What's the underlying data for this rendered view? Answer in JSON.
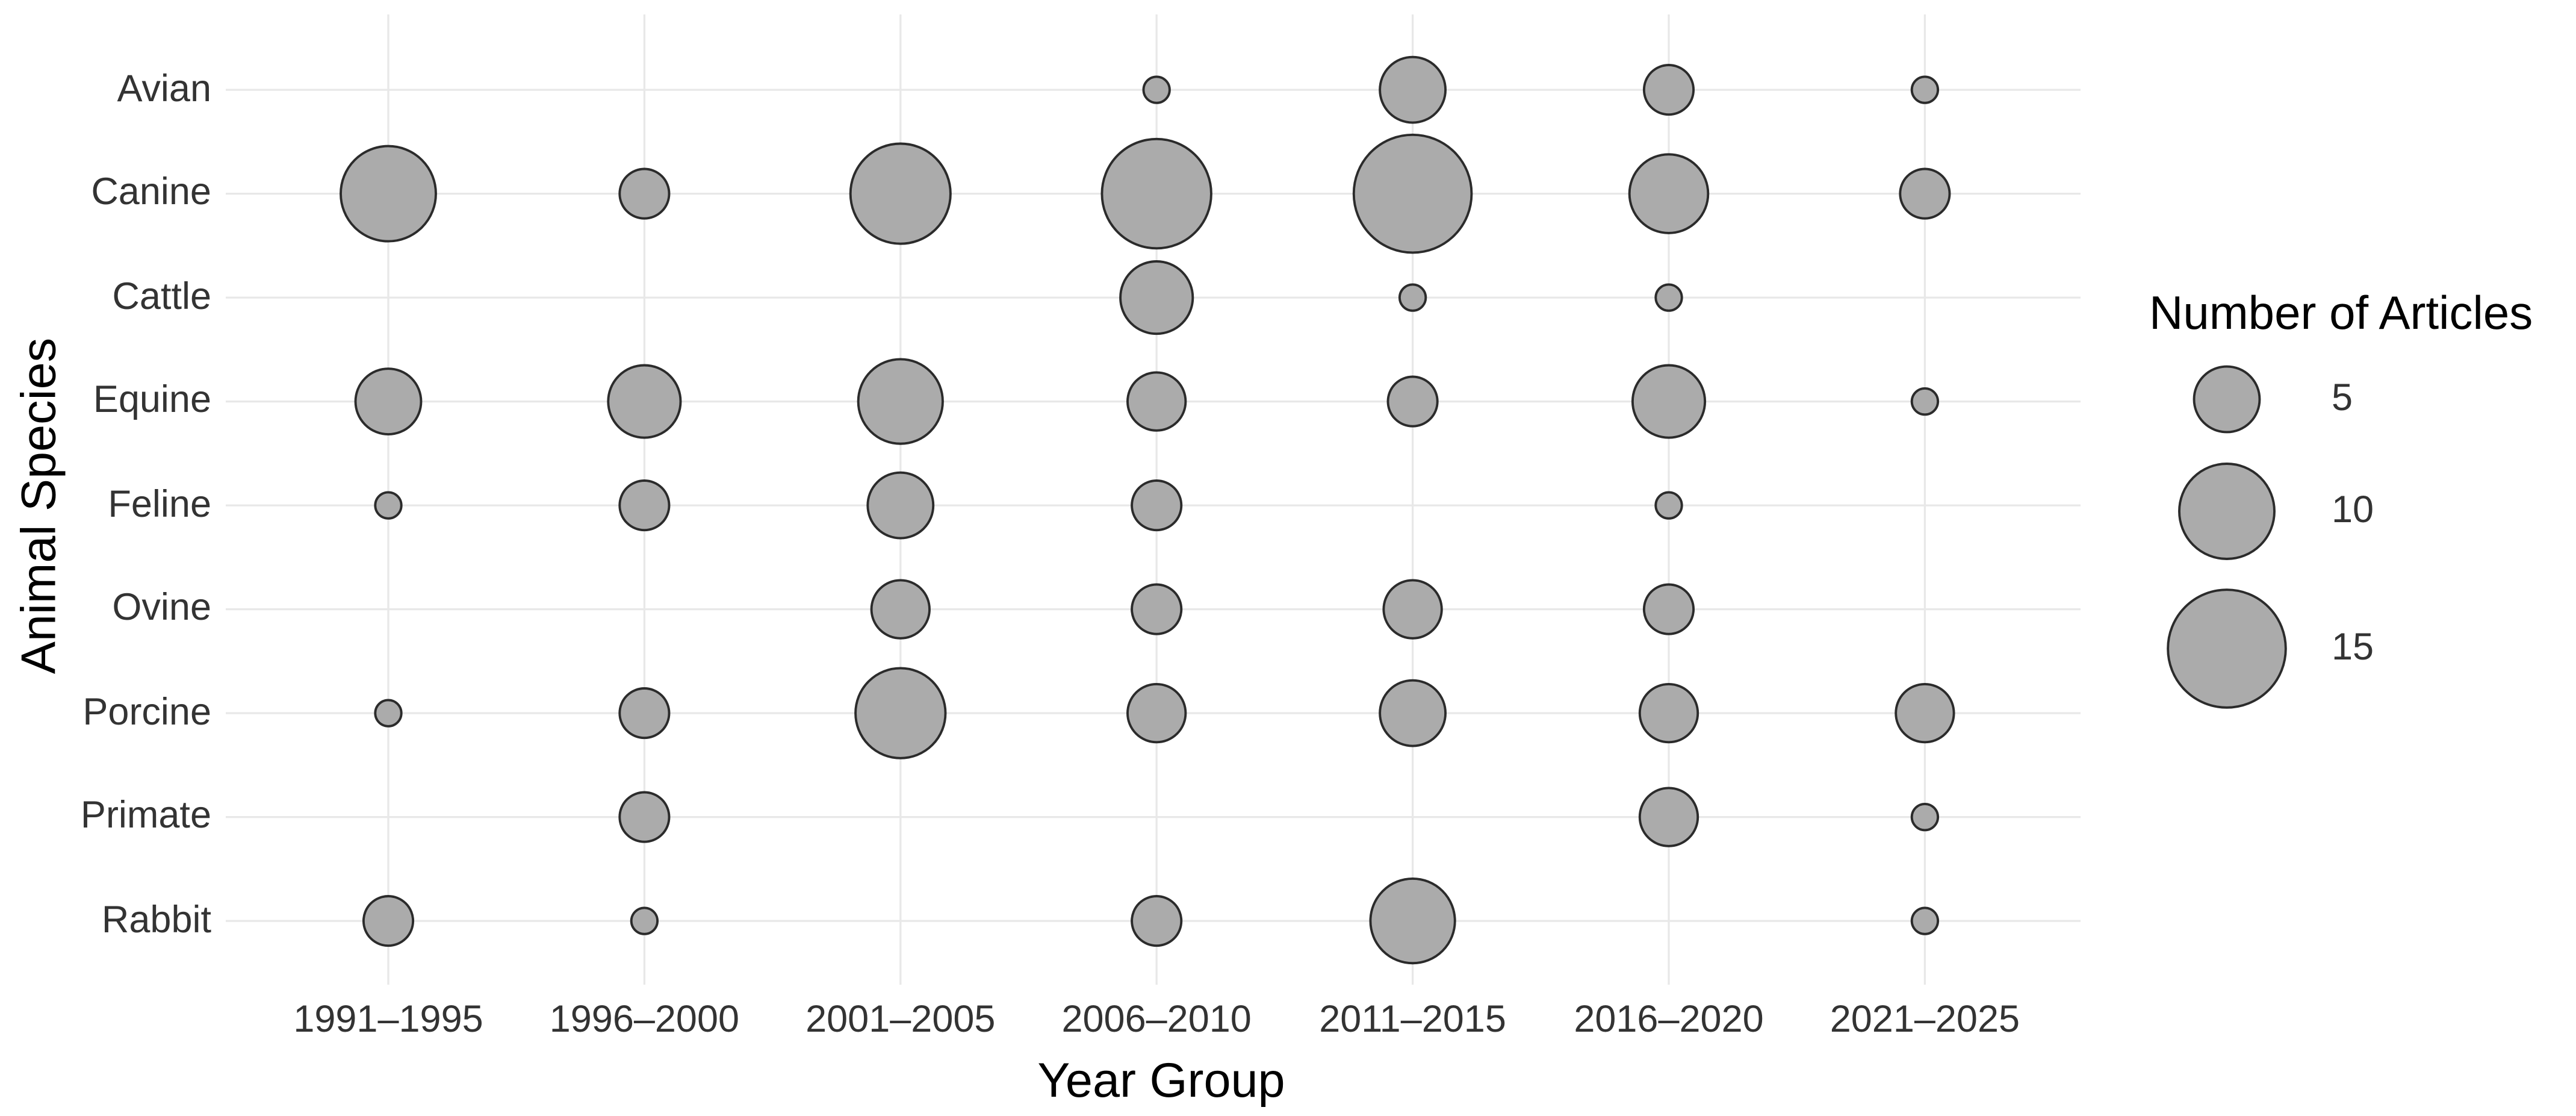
{
  "chart_data": {
    "type": "scatter",
    "subtype": "bubble",
    "title": "",
    "xlabel": "Year Group",
    "ylabel": "Animal Species",
    "x_categories": [
      "1991–1995",
      "1996–2000",
      "2001–2005",
      "2006–2010",
      "2011–2015",
      "2016–2020",
      "2021–2025"
    ],
    "y_categories": [
      "Avian",
      "Canine",
      "Cattle",
      "Equine",
      "Feline",
      "Ovine",
      "Porcine",
      "Primate",
      "Rabbit"
    ],
    "legend": {
      "title": "Number of Articles",
      "position": "right",
      "breaks": [
        5,
        10,
        15
      ],
      "break_labels": [
        "5",
        "10",
        "15"
      ]
    },
    "grid": "on",
    "points": [
      {
        "species": "Avian",
        "year": "2006–2010",
        "articles": 1
      },
      {
        "species": "Avian",
        "year": "2011–2015",
        "articles": 5
      },
      {
        "species": "Avian",
        "year": "2016–2020",
        "articles": 3
      },
      {
        "species": "Avian",
        "year": "2021–2025",
        "articles": 1
      },
      {
        "species": "Canine",
        "year": "1991–1995",
        "articles": 10
      },
      {
        "species": "Canine",
        "year": "1996–2000",
        "articles": 3
      },
      {
        "species": "Canine",
        "year": "2001–2005",
        "articles": 11
      },
      {
        "species": "Canine",
        "year": "2006–2010",
        "articles": 13
      },
      {
        "species": "Canine",
        "year": "2011–2015",
        "articles": 15
      },
      {
        "species": "Canine",
        "year": "2016–2020",
        "articles": 7
      },
      {
        "species": "Canine",
        "year": "2021–2025",
        "articles": 3
      },
      {
        "species": "Cattle",
        "year": "2006–2010",
        "articles": 6
      },
      {
        "species": "Cattle",
        "year": "2011–2015",
        "articles": 1
      },
      {
        "species": "Cattle",
        "year": "2016–2020",
        "articles": 1
      },
      {
        "species": "Equine",
        "year": "1991–1995",
        "articles": 5
      },
      {
        "species": "Equine",
        "year": "1996–2000",
        "articles": 6
      },
      {
        "species": "Equine",
        "year": "2001–2005",
        "articles": 8
      },
      {
        "species": "Equine",
        "year": "2006–2010",
        "articles": 4
      },
      {
        "species": "Equine",
        "year": "2011–2015",
        "articles": 3
      },
      {
        "species": "Equine",
        "year": "2016–2020",
        "articles": 6
      },
      {
        "species": "Equine",
        "year": "2021–2025",
        "articles": 1
      },
      {
        "species": "Feline",
        "year": "1991–1995",
        "articles": 1
      },
      {
        "species": "Feline",
        "year": "1996–2000",
        "articles": 3
      },
      {
        "species": "Feline",
        "year": "2001–2005",
        "articles": 5
      },
      {
        "species": "Feline",
        "year": "2006–2010",
        "articles": 3
      },
      {
        "species": "Feline",
        "year": "2016–2020",
        "articles": 1
      },
      {
        "species": "Ovine",
        "year": "2001–2005",
        "articles": 4
      },
      {
        "species": "Ovine",
        "year": "2006–2010",
        "articles": 3
      },
      {
        "species": "Ovine",
        "year": "2011–2015",
        "articles": 4
      },
      {
        "species": "Ovine",
        "year": "2016–2020",
        "articles": 3
      },
      {
        "species": "Porcine",
        "year": "1991–1995",
        "articles": 1
      },
      {
        "species": "Porcine",
        "year": "1996–2000",
        "articles": 3
      },
      {
        "species": "Porcine",
        "year": "2001–2005",
        "articles": 9
      },
      {
        "species": "Porcine",
        "year": "2006–2010",
        "articles": 4
      },
      {
        "species": "Porcine",
        "year": "2011–2015",
        "articles": 5
      },
      {
        "species": "Porcine",
        "year": "2016–2020",
        "articles": 4
      },
      {
        "species": "Porcine",
        "year": "2021–2025",
        "articles": 4
      },
      {
        "species": "Primate",
        "year": "1996–2000",
        "articles": 3
      },
      {
        "species": "Primate",
        "year": "2016–2020",
        "articles": 4
      },
      {
        "species": "Primate",
        "year": "2021–2025",
        "articles": 1
      },
      {
        "species": "Rabbit",
        "year": "1991–1995",
        "articles": 3
      },
      {
        "species": "Rabbit",
        "year": "1996–2000",
        "articles": 1
      },
      {
        "species": "Rabbit",
        "year": "2006–2010",
        "articles": 3
      },
      {
        "species": "Rabbit",
        "year": "2011–2015",
        "articles": 8
      },
      {
        "species": "Rabbit",
        "year": "2021–2025",
        "articles": 1
      }
    ],
    "colors": {
      "bubble_fill": "#ABABAB",
      "bubble_stroke": "#2B2B2B",
      "grid": "#E8E8E8",
      "tick_text": "#333333",
      "title_text": "#000000",
      "background": "#FFFFFF"
    }
  }
}
